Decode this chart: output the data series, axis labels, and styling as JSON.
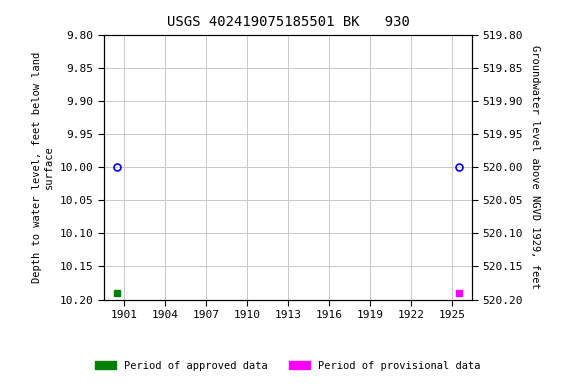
{
  "title": "USGS 402419075185501 BK   930",
  "x_ticks": [
    1901,
    1904,
    1907,
    1910,
    1913,
    1916,
    1919,
    1922,
    1925
  ],
  "xlim": [
    1899.5,
    1926.5
  ],
  "ylim_left": [
    9.8,
    10.2
  ],
  "ylim_right": [
    519.8,
    520.2
  ],
  "yticks_left": [
    9.8,
    9.85,
    9.9,
    9.95,
    10.0,
    10.05,
    10.1,
    10.15,
    10.2
  ],
  "yticks_right": [
    519.8,
    519.85,
    519.9,
    519.95,
    520.0,
    520.05,
    520.1,
    520.15,
    520.2
  ],
  "ylabel_left": "Depth to water level, feet below land\nsurface",
  "ylabel_right": "Groundwater level above NGVD 1929, feet",
  "approved_points_x": [
    1900.5
  ],
  "approved_points_y": [
    10.0
  ],
  "provisional_points_x": [
    1925.5
  ],
  "provisional_points_y": [
    10.0
  ],
  "approved_square_x": [
    1900.5
  ],
  "approved_square_y": [
    10.19
  ],
  "provisional_square_x": [
    1925.5
  ],
  "provisional_square_y": [
    10.19
  ],
  "approved_color": "#008000",
  "provisional_color": "#ff00ff",
  "circle_color": "#0000ff",
  "background_color": "#ffffff",
  "grid_color": "#c8c8c8",
  "title_fontsize": 10,
  "label_fontsize": 7.5,
  "tick_fontsize": 8
}
